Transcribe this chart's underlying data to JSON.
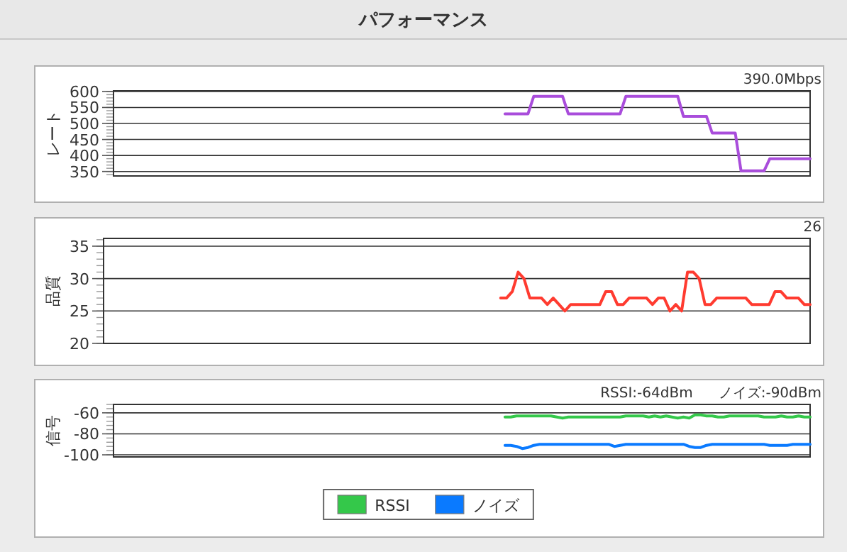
{
  "chart_data": [
    {
      "type": "line",
      "title": "パフォーマンス",
      "ylabel": "レート",
      "grid": "y",
      "ylim": [
        336,
        602
      ],
      "yticks": [
        350,
        400,
        450,
        500,
        550,
        600
      ],
      "annotations": [
        "390.0Mbps"
      ],
      "categories": [
        null,
        null,
        null,
        null,
        null,
        null,
        null,
        null,
        null,
        null,
        null,
        null,
        null,
        null,
        null,
        null,
        null,
        null,
        null,
        null,
        null,
        null,
        null,
        null,
        null,
        null,
        null,
        null,
        null,
        null,
        null,
        null,
        null,
        null,
        null,
        null,
        null,
        null,
        null,
        null,
        null,
        null,
        null,
        null,
        null,
        null,
        null,
        null,
        null,
        null,
        null,
        null,
        null,
        null,
        null,
        null,
        null,
        null,
        null,
        null,
        null,
        null,
        null,
        null,
        null,
        null,
        null,
        null,
        null,
        null,
        null,
        null,
        null,
        null,
        null,
        null,
        null,
        null,
        null,
        null,
        null,
        null,
        null,
        null,
        null,
        null,
        null,
        null,
        null,
        null,
        null,
        null,
        null,
        null,
        null,
        null,
        null,
        null,
        null,
        null,
        null,
        null,
        null,
        null,
        null,
        null,
        null,
        null,
        null,
        null,
        null,
        null,
        null,
        null,
        null,
        null,
        null,
        null,
        null,
        null,
        null,
        null
      ],
      "series": [
        {
          "color": "#a94ddb",
          "values": [
            null,
            null,
            null,
            null,
            null,
            null,
            null,
            null,
            null,
            null,
            null,
            null,
            null,
            null,
            null,
            null,
            null,
            null,
            null,
            null,
            null,
            null,
            null,
            null,
            null,
            null,
            null,
            null,
            null,
            null,
            null,
            null,
            null,
            null,
            null,
            null,
            null,
            null,
            null,
            null,
            null,
            null,
            null,
            null,
            null,
            null,
            null,
            null,
            null,
            null,
            null,
            null,
            null,
            null,
            null,
            null,
            null,
            null,
            null,
            null,
            null,
            null,
            null,
            null,
            null,
            null,
            null,
            null,
            530,
            530,
            530,
            530,
            530,
            585,
            585,
            585,
            585,
            585,
            585,
            530,
            530,
            530,
            530,
            530,
            530,
            530,
            530,
            530,
            530,
            585,
            585,
            585,
            585,
            585,
            585,
            585,
            585,
            585,
            585,
            522,
            522,
            522,
            522,
            522,
            470,
            470,
            470,
            470,
            470,
            352,
            352,
            352,
            352,
            352,
            390,
            390,
            390,
            390,
            390,
            390,
            390,
            390
          ]
        }
      ]
    },
    {
      "type": "line",
      "ylabel": "品質",
      "grid": "y",
      "ylim": [
        20,
        36.2
      ],
      "yticks": [
        20,
        25,
        30,
        35
      ],
      "annotations": [
        "26"
      ],
      "categories": [
        null,
        null,
        null,
        null,
        null,
        null,
        null,
        null,
        null,
        null,
        null,
        null,
        null,
        null,
        null,
        null,
        null,
        null,
        null,
        null,
        null,
        null,
        null,
        null,
        null,
        null,
        null,
        null,
        null,
        null,
        null,
        null,
        null,
        null,
        null,
        null,
        null,
        null,
        null,
        null,
        null,
        null,
        null,
        null,
        null,
        null,
        null,
        null,
        null,
        null,
        null,
        null,
        null,
        null,
        null,
        null,
        null,
        null,
        null,
        null,
        null,
        null,
        null,
        null,
        null,
        null,
        null,
        null,
        null,
        null,
        null,
        null,
        null,
        null,
        null,
        null,
        null,
        null,
        null,
        null,
        null,
        null,
        null,
        null,
        null,
        null,
        null,
        null,
        null,
        null,
        null,
        null,
        null,
        null,
        null,
        null,
        null,
        null,
        null,
        null,
        null,
        null,
        null,
        null,
        null,
        null,
        null,
        null,
        null,
        null,
        null,
        null,
        null,
        null,
        null,
        null,
        null,
        null,
        null,
        null,
        null,
        null
      ],
      "series": [
        {
          "color": "#ff3b30",
          "values": [
            null,
            null,
            null,
            null,
            null,
            null,
            null,
            null,
            null,
            null,
            null,
            null,
            null,
            null,
            null,
            null,
            null,
            null,
            null,
            null,
            null,
            null,
            null,
            null,
            null,
            null,
            null,
            null,
            null,
            null,
            null,
            null,
            null,
            null,
            null,
            null,
            null,
            null,
            null,
            null,
            null,
            null,
            null,
            null,
            null,
            null,
            null,
            null,
            null,
            null,
            null,
            null,
            null,
            null,
            null,
            null,
            null,
            null,
            null,
            null,
            null,
            null,
            null,
            null,
            null,
            null,
            null,
            null,
            27,
            27,
            28,
            31,
            30,
            27,
            27,
            27,
            26,
            27,
            26,
            25,
            26,
            26,
            26,
            26,
            26,
            26,
            28,
            28,
            26,
            26,
            27,
            27,
            27,
            27,
            26,
            27,
            27,
            25,
            26,
            25,
            31,
            31,
            30,
            26,
            26,
            27,
            27,
            27,
            27,
            27,
            27,
            26,
            26,
            26,
            26,
            28,
            28,
            27,
            27,
            27,
            26,
            26
          ]
        }
      ]
    },
    {
      "type": "line",
      "ylabel": "信号",
      "grid": "y",
      "ylim": [
        -102,
        -52
      ],
      "yticks": [
        -100,
        -80,
        -60
      ],
      "legend": "bottom",
      "annotations": [
        "RSSI:-64dBm",
        "ノイズ:-90dBm"
      ],
      "categories": [
        null,
        null,
        null,
        null,
        null,
        null,
        null,
        null,
        null,
        null,
        null,
        null,
        null,
        null,
        null,
        null,
        null,
        null,
        null,
        null,
        null,
        null,
        null,
        null,
        null,
        null,
        null,
        null,
        null,
        null,
        null,
        null,
        null,
        null,
        null,
        null,
        null,
        null,
        null,
        null,
        null,
        null,
        null,
        null,
        null,
        null,
        null,
        null,
        null,
        null,
        null,
        null,
        null,
        null,
        null,
        null,
        null,
        null,
        null,
        null,
        null,
        null,
        null,
        null,
        null,
        null,
        null,
        null,
        null,
        null,
        null,
        null,
        null,
        null,
        null,
        null,
        null,
        null,
        null,
        null,
        null,
        null,
        null,
        null,
        null,
        null,
        null,
        null,
        null,
        null,
        null,
        null,
        null,
        null,
        null,
        null,
        null,
        null,
        null,
        null,
        null,
        null,
        null,
        null,
        null,
        null,
        null,
        null,
        null,
        null,
        null,
        null,
        null,
        null,
        null,
        null,
        null,
        null,
        null,
        null,
        null,
        null
      ],
      "series": [
        {
          "name": "RSSI",
          "color": "#34c84a",
          "values": [
            null,
            null,
            null,
            null,
            null,
            null,
            null,
            null,
            null,
            null,
            null,
            null,
            null,
            null,
            null,
            null,
            null,
            null,
            null,
            null,
            null,
            null,
            null,
            null,
            null,
            null,
            null,
            null,
            null,
            null,
            null,
            null,
            null,
            null,
            null,
            null,
            null,
            null,
            null,
            null,
            null,
            null,
            null,
            null,
            null,
            null,
            null,
            null,
            null,
            null,
            null,
            null,
            null,
            null,
            null,
            null,
            null,
            null,
            null,
            null,
            null,
            null,
            null,
            null,
            null,
            null,
            null,
            null,
            -64,
            -64,
            -63,
            -63,
            -63,
            -63,
            -63,
            -63,
            -63,
            -64,
            -65,
            -64,
            -64,
            -64,
            -64,
            -64,
            -64,
            -64,
            -64,
            -64,
            -64,
            -63,
            -63,
            -63,
            -63,
            -64,
            -63,
            -64,
            -63,
            -64,
            -65,
            -64,
            -65,
            -62,
            -62,
            -63,
            -63,
            -64,
            -64,
            -63,
            -63,
            -63,
            -63,
            -63,
            -63,
            -64,
            -64,
            -64,
            -63,
            -64,
            -64,
            -63,
            -64,
            -64
          ]
        },
        {
          "name": "ノイズ",
          "color": "#0a7aff",
          "values": [
            null,
            null,
            null,
            null,
            null,
            null,
            null,
            null,
            null,
            null,
            null,
            null,
            null,
            null,
            null,
            null,
            null,
            null,
            null,
            null,
            null,
            null,
            null,
            null,
            null,
            null,
            null,
            null,
            null,
            null,
            null,
            null,
            null,
            null,
            null,
            null,
            null,
            null,
            null,
            null,
            null,
            null,
            null,
            null,
            null,
            null,
            null,
            null,
            null,
            null,
            null,
            null,
            null,
            null,
            null,
            null,
            null,
            null,
            null,
            null,
            null,
            null,
            null,
            null,
            null,
            null,
            null,
            null,
            -91,
            -91,
            -92,
            -94,
            -93,
            -91,
            -90,
            -90,
            -90,
            -90,
            -90,
            -90,
            -90,
            -90,
            -90,
            -90,
            -90,
            -90,
            -90,
            -92,
            -91,
            -90,
            -90,
            -90,
            -90,
            -90,
            -90,
            -90,
            -90,
            -90,
            -90,
            -90,
            -92,
            -93,
            -93,
            -91,
            -90,
            -90,
            -90,
            -90,
            -90,
            -90,
            -90,
            -90,
            -90,
            -90,
            -91,
            -91,
            -91,
            -91,
            -90,
            -90,
            -90,
            -90
          ]
        }
      ]
    }
  ]
}
